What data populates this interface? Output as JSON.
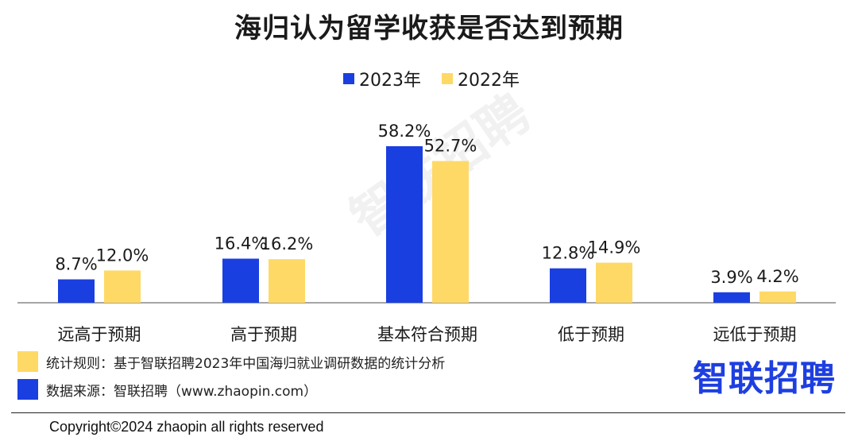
{
  "chart_data": {
    "type": "bar",
    "title": "海归认为留学收获是否达到预期",
    "categories": [
      "远高于预期",
      "高于预期",
      "基本符合预期",
      "低于预期",
      "远低于预期"
    ],
    "series": [
      {
        "name": "2023年",
        "color": "#1a3fe0",
        "values": [
          8.7,
          16.4,
          58.2,
          12.8,
          3.9
        ],
        "labels": [
          "8.7%",
          "16.4%",
          "58.2%",
          "12.8%",
          "3.9%"
        ]
      },
      {
        "name": "2022年",
        "color": "#ffd966",
        "values": [
          12.0,
          16.2,
          52.7,
          14.9,
          4.2
        ],
        "labels": [
          "12.0%",
          "16.2%",
          "52.7%",
          "14.9%",
          "4.2%"
        ]
      }
    ],
    "ylim": [
      0,
      58.2
    ],
    "legend_position": "top-center"
  },
  "notes": {
    "rule": "统计规则：基于智联招聘2023年中国海归就业调研数据的统计分析",
    "rule_color": "#ffd966",
    "source": "数据来源：智联招聘（www.zhaopin.com）",
    "source_color": "#1a3fe0"
  },
  "brand": "智联招聘",
  "watermark": "智联招聘",
  "copyright": "Copyright©2024 zhaopin all rights reserved"
}
